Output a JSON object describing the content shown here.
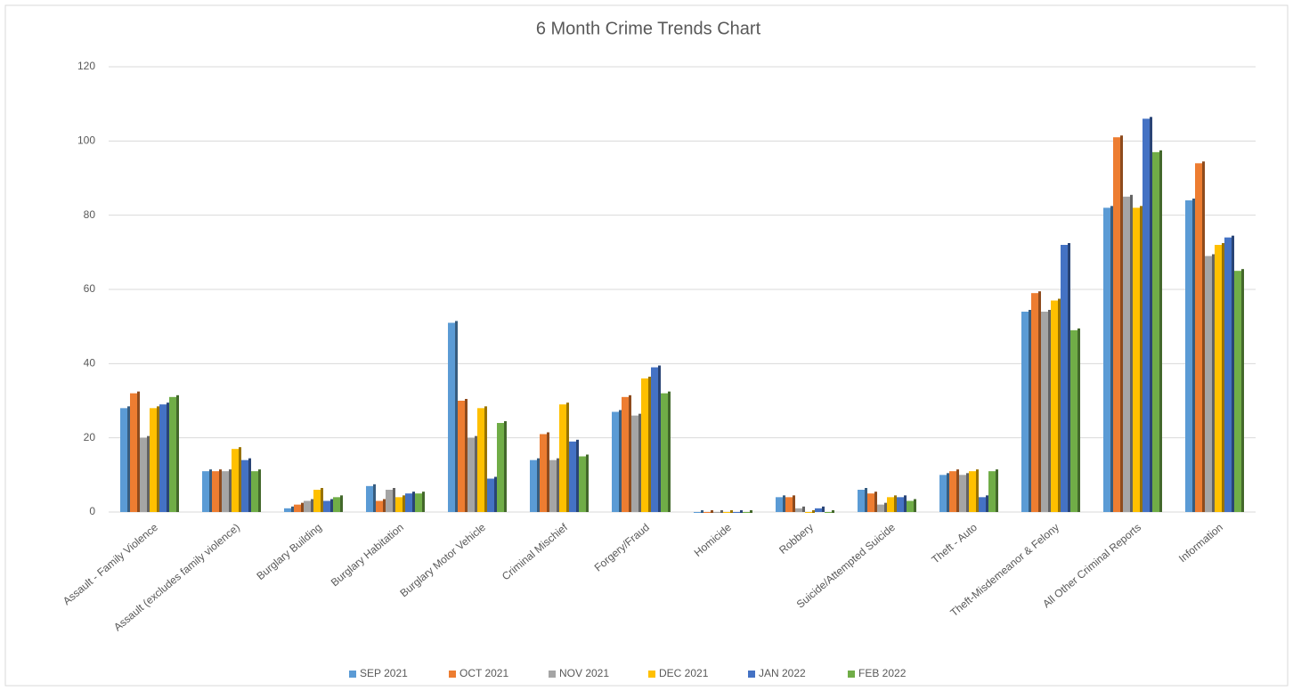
{
  "chart_data": {
    "type": "bar",
    "title": "6 Month Crime Trends Chart",
    "categories": [
      "Assault - Family Violence",
      "Assault (excludes family violence)",
      "Burglary Building",
      "Burglary Habitation",
      "Burglary Motor Vehicle",
      "Criminal Mischief",
      "Forgery/Fraud",
      "Homicide",
      "Robbery",
      "Suicide/Attempted Suicide",
      "Theft - Auto",
      "Theft-Misdemeanor &  Felony",
      "All Other Criminal Reports",
      "Information"
    ],
    "series": [
      {
        "name": "SEP 2021",
        "color": "#5b9bd5",
        "values": [
          28,
          11,
          1,
          7,
          51,
          14,
          27,
          0,
          4,
          6,
          10,
          54,
          82,
          84
        ]
      },
      {
        "name": "OCT 2021",
        "color": "#ed7d31",
        "values": [
          32,
          11,
          2,
          3,
          30,
          21,
          31,
          0,
          4,
          5,
          11,
          59,
          101,
          94
        ]
      },
      {
        "name": "NOV 2021",
        "color": "#a5a5a5",
        "values": [
          20,
          11,
          3,
          6,
          20,
          14,
          26,
          0,
          1,
          2,
          10,
          54,
          85,
          69
        ]
      },
      {
        "name": "DEC 2021",
        "color": "#ffc000",
        "values": [
          28,
          17,
          6,
          4,
          28,
          29,
          36,
          0,
          0,
          4,
          11,
          57,
          82,
          72
        ]
      },
      {
        "name": "JAN 2022",
        "color": "#4472c4",
        "values": [
          29,
          14,
          3,
          5,
          9,
          19,
          39,
          0,
          1,
          4,
          4,
          72,
          106,
          74
        ]
      },
      {
        "name": "FEB 2022",
        "color": "#70ad47",
        "values": [
          31,
          11,
          4,
          5,
          24,
          15,
          32,
          0,
          0,
          3,
          11,
          49,
          97,
          65
        ]
      }
    ],
    "ylim": [
      0,
      120
    ],
    "yticks": [
      0,
      20,
      40,
      60,
      80,
      100,
      120
    ],
    "grid": true,
    "legend": "bottom"
  }
}
